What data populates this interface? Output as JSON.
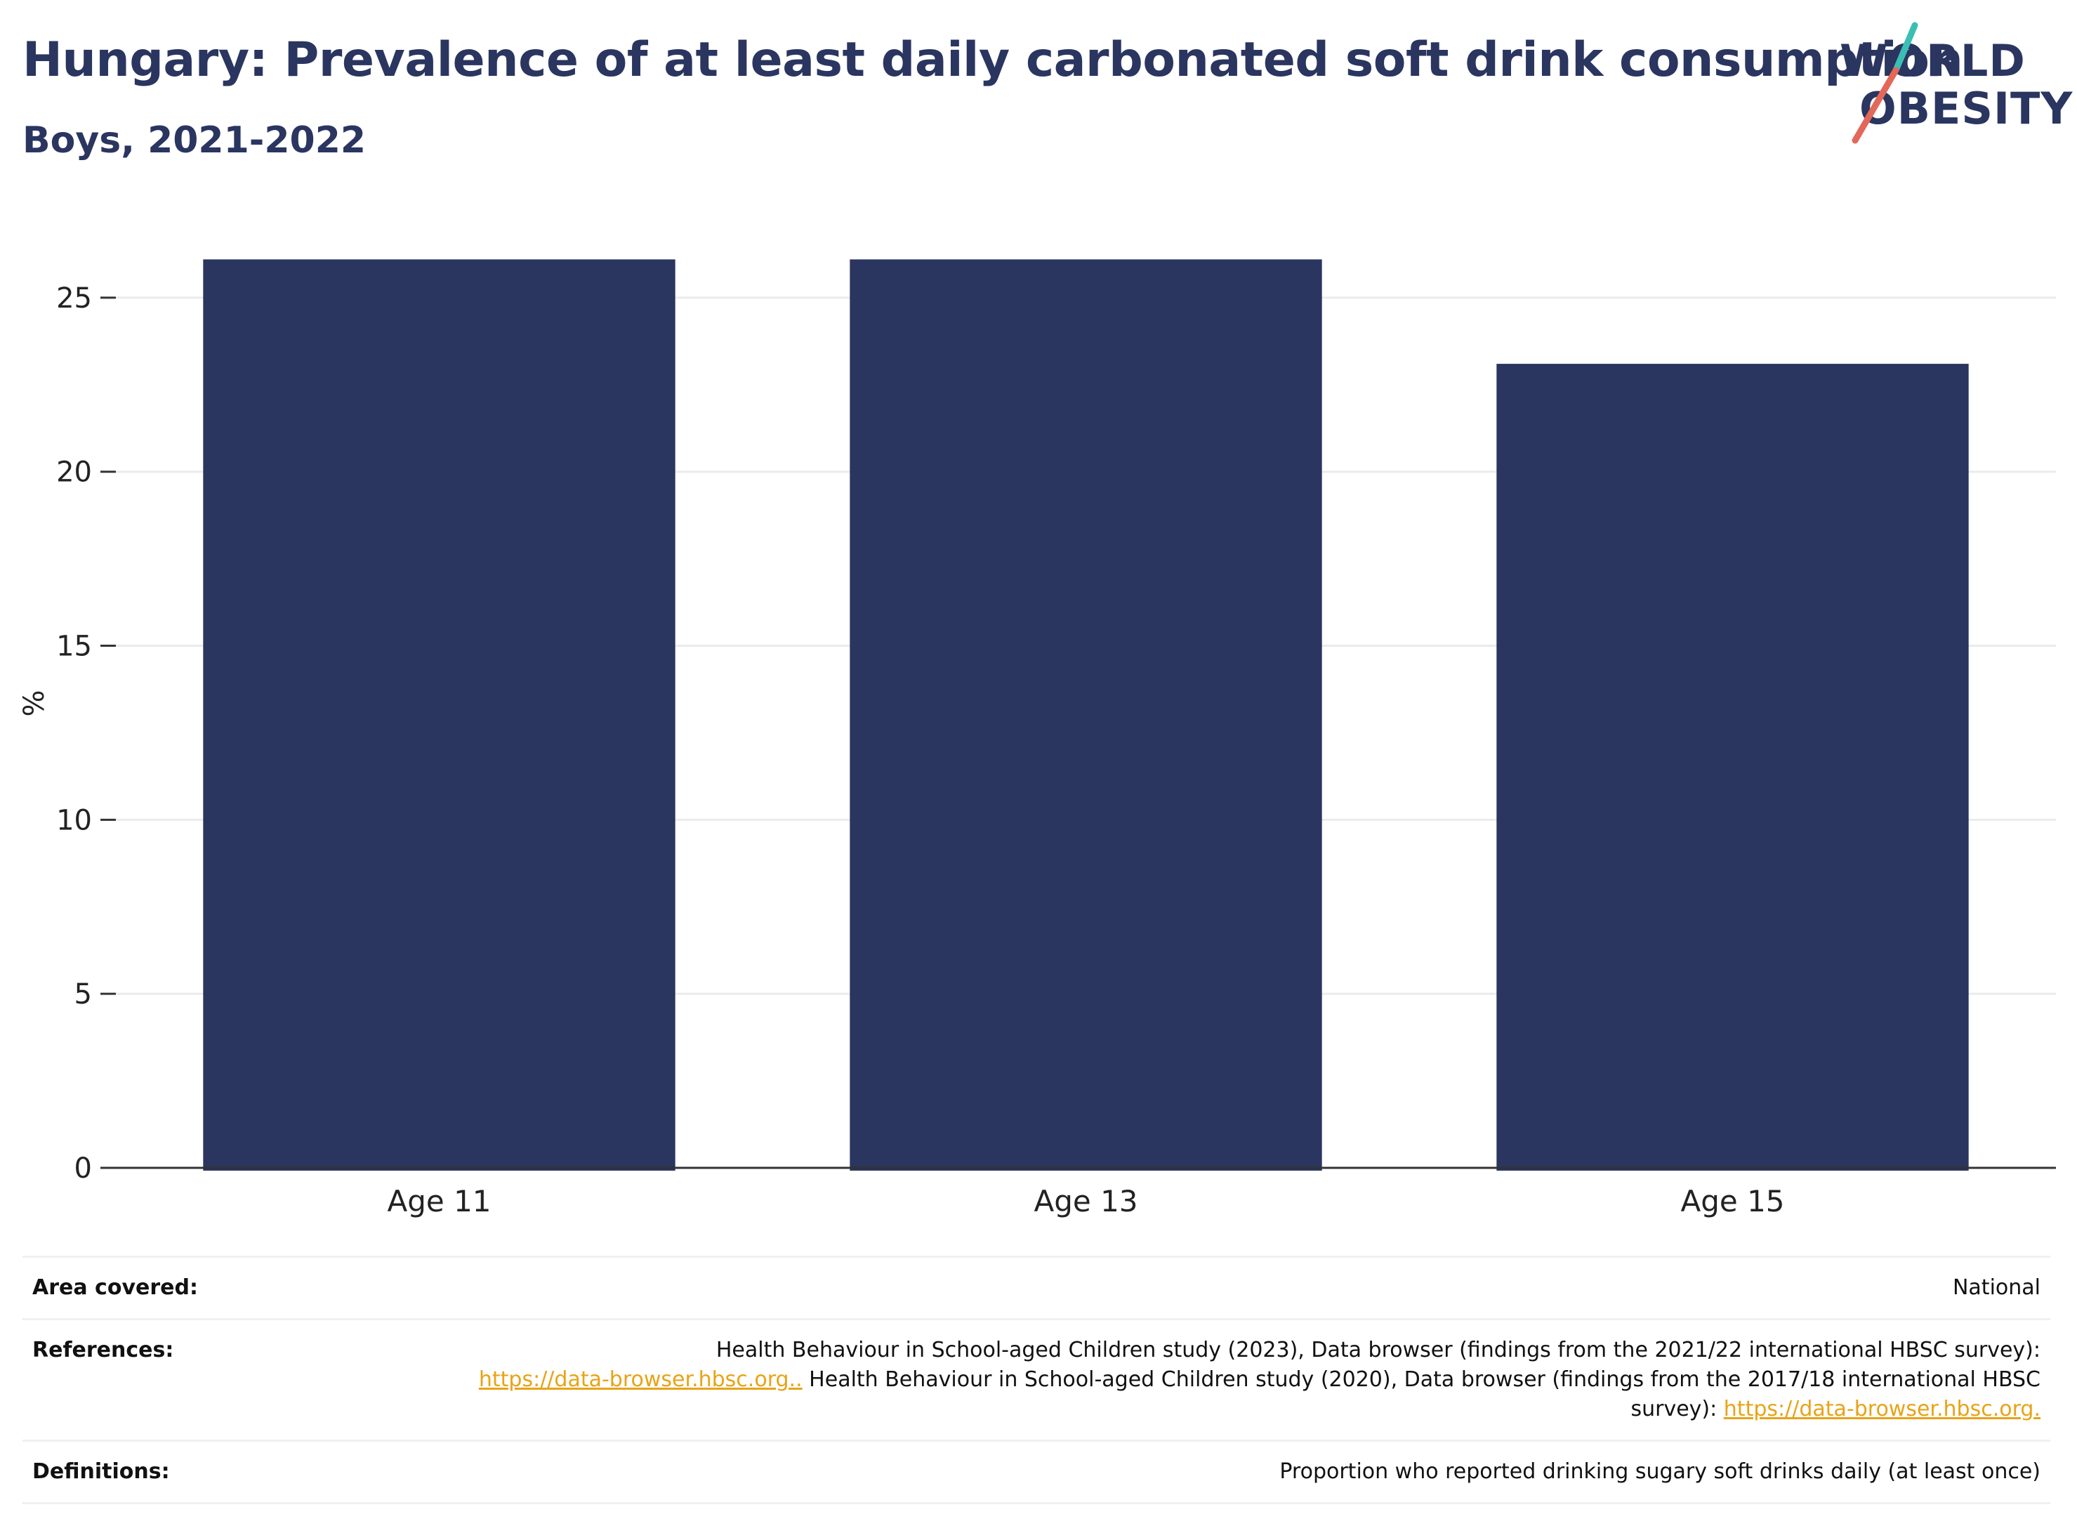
{
  "header": {
    "title": "Hungary: Prevalence of at least daily carbonated soft drink consumption",
    "subtitle": "Boys, 2021-2022"
  },
  "logo": {
    "line1": "WORLD",
    "line2": "OBESITY",
    "colors": {
      "text": "#2a3560",
      "slash_top": "#3bbfb4",
      "slash_bottom": "#e2685a"
    }
  },
  "chart_data": {
    "type": "bar",
    "categories": [
      "Age 11",
      "Age 13",
      "Age 15"
    ],
    "values": [
      26.1,
      26.1,
      23.1
    ],
    "ylabel": "%",
    "ylim": [
      0,
      27.5
    ],
    "yticks": [
      0,
      5,
      10,
      15,
      20,
      25
    ],
    "grid": true,
    "bar_color": "#2a3560"
  },
  "info": {
    "area": {
      "label": "Area covered:",
      "value": "National"
    },
    "references": {
      "label": "References:",
      "text1": "Health Behaviour in School-aged Children study (2023), Data browser (findings from the 2021/22 international HBSC survey):",
      "link1": "https://data-browser.hbsc.org..",
      "text2": "Health Behaviour in School-aged Children study (2020), Data browser (findings from the 2017/18 international HBSC survey):",
      "link2": "https://data-browser.hbsc.org."
    },
    "definitions": {
      "label": "Definitions:",
      "value": "Proportion who reported drinking sugary soft drinks daily (at least once)"
    }
  }
}
